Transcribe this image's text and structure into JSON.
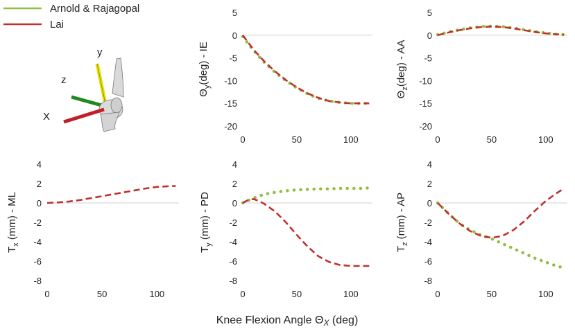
{
  "legend": [
    {
      "name": "Arnold & Rajagopal",
      "color": "#8fbf3f",
      "style": "dotted"
    },
    {
      "name": "Lai",
      "color": "#c0302c",
      "style": "dashed"
    }
  ],
  "figure_xlabel": "Knee Flexion Angle Θ",
  "figure_xlabel_sub": "X",
  "figure_xlabel_unit": " (deg)",
  "diagram": {
    "axis_y": "y",
    "axis_z": "z",
    "axis_x": "X",
    "colors": {
      "y": "#e5e000",
      "z": "#1f8a1f",
      "x": "#c0202a",
      "bone": "#d9d9d9"
    }
  },
  "chart_data": [
    {
      "id": "theta-y",
      "type": "line",
      "ylabel": "Θ",
      "ylabel_sub": "y",
      "ylabel_rest": "(deg) - IE",
      "xlim": [
        0,
        120
      ],
      "ylim": [
        -20,
        5
      ],
      "xticks": [
        0,
        50,
        100
      ],
      "yticks": [
        5,
        0,
        -5,
        -10,
        -15,
        -20
      ],
      "series": [
        {
          "name": "Lai",
          "x": [
            0,
            10,
            20,
            30,
            40,
            50,
            60,
            70,
            80,
            90,
            100,
            110,
            117
          ],
          "values": [
            0,
            -3.2,
            -5.8,
            -8.0,
            -9.9,
            -11.5,
            -12.8,
            -13.8,
            -14.5,
            -14.8,
            -15,
            -15,
            -15
          ]
        },
        {
          "name": "Arnold & Rajagopal",
          "x": [
            0,
            10,
            20,
            30,
            40,
            50,
            60,
            70,
            80,
            90,
            100,
            110,
            117
          ],
          "values": [
            -0.3,
            -3.4,
            -6.0,
            -8.2,
            -10.0,
            -11.6,
            -12.9,
            -13.9,
            -14.5,
            -14.8,
            -15,
            -15,
            -15
          ]
        }
      ]
    },
    {
      "id": "theta-z",
      "type": "line",
      "ylabel": "Θ",
      "ylabel_sub": "z",
      "ylabel_rest": "(deg) - AA",
      "xlim": [
        0,
        120
      ],
      "ylim": [
        -20,
        5
      ],
      "xticks": [
        0,
        50,
        100
      ],
      "yticks": [
        5,
        0,
        -5,
        -10,
        -15,
        -20
      ],
      "series": [
        {
          "name": "Lai",
          "x": [
            0,
            10,
            20,
            30,
            40,
            50,
            60,
            70,
            80,
            90,
            100,
            110,
            117
          ],
          "values": [
            0,
            0.6,
            1.1,
            1.5,
            1.8,
            1.9,
            1.8,
            1.5,
            1.1,
            0.7,
            0.4,
            0.2,
            0.1
          ]
        },
        {
          "name": "Arnold & Rajagopal",
          "x": [
            0,
            10,
            20,
            30,
            40,
            50,
            60,
            70,
            80,
            90,
            100,
            110,
            117
          ],
          "values": [
            0.1,
            0.7,
            1.2,
            1.6,
            1.9,
            2.0,
            1.9,
            1.6,
            1.2,
            0.8,
            0.5,
            0.2,
            0.1
          ]
        }
      ]
    },
    {
      "id": "tx",
      "type": "line",
      "ylabel": "T",
      "ylabel_sub": "x",
      "ylabel_rest": " (mm) - ML",
      "xlim": [
        0,
        120
      ],
      "ylim": [
        -8,
        4
      ],
      "xticks": [
        0,
        50,
        100
      ],
      "yticks": [
        4,
        2,
        0,
        -2,
        -4,
        -6,
        -8
      ],
      "series": [
        {
          "name": "Lai",
          "x": [
            0,
            10,
            20,
            30,
            40,
            50,
            60,
            70,
            80,
            90,
            100,
            110,
            117
          ],
          "values": [
            0,
            0.05,
            0.15,
            0.3,
            0.5,
            0.7,
            0.9,
            1.1,
            1.3,
            1.5,
            1.65,
            1.72,
            1.75
          ]
        }
      ]
    },
    {
      "id": "ty",
      "type": "line",
      "ylabel": "T",
      "ylabel_sub": "y",
      "ylabel_rest": " (mm) - PD",
      "xlim": [
        0,
        120
      ],
      "ylim": [
        -8,
        4
      ],
      "xticks": [
        0,
        50,
        100
      ],
      "yticks": [
        4,
        2,
        0,
        -2,
        -4,
        -6,
        -8
      ],
      "series": [
        {
          "name": "Lai",
          "x": [
            0,
            5,
            10,
            15,
            20,
            30,
            40,
            50,
            60,
            70,
            80,
            90,
            100,
            110,
            117
          ],
          "values": [
            0,
            0.3,
            0.4,
            0.2,
            -0.1,
            -0.9,
            -2.0,
            -3.3,
            -4.5,
            -5.5,
            -6.1,
            -6.4,
            -6.5,
            -6.5,
            -6.5
          ]
        },
        {
          "name": "Arnold & Rajagopal",
          "x": [
            0,
            10,
            20,
            30,
            40,
            50,
            60,
            70,
            80,
            90,
            100,
            110,
            117
          ],
          "values": [
            0,
            0.5,
            0.9,
            1.1,
            1.25,
            1.35,
            1.4,
            1.45,
            1.45,
            1.5,
            1.5,
            1.5,
            1.55
          ]
        }
      ]
    },
    {
      "id": "tz",
      "type": "line",
      "ylabel": "T",
      "ylabel_sub": "z",
      "ylabel_rest": " (mm) - AP",
      "xlim": [
        0,
        120
      ],
      "ylim": [
        -8,
        4
      ],
      "xticks": [
        0,
        50,
        100
      ],
      "yticks": [
        4,
        2,
        0,
        -2,
        -4,
        -6,
        -8
      ],
      "series": [
        {
          "name": "Lai",
          "x": [
            0,
            10,
            20,
            30,
            40,
            50,
            60,
            70,
            80,
            90,
            100,
            110,
            117
          ],
          "values": [
            0,
            -1.1,
            -2.1,
            -2.9,
            -3.4,
            -3.6,
            -3.4,
            -2.8,
            -1.9,
            -0.8,
            0.2,
            1.0,
            1.5
          ]
        },
        {
          "name": "Arnold & Rajagopal",
          "x": [
            0,
            10,
            20,
            30,
            40,
            50,
            60,
            70,
            80,
            90,
            100,
            110,
            117
          ],
          "values": [
            0,
            -1.1,
            -2.1,
            -2.8,
            -3.3,
            -3.7,
            -4.2,
            -4.7,
            -5.2,
            -5.7,
            -6.1,
            -6.5,
            -6.7
          ]
        }
      ]
    }
  ]
}
